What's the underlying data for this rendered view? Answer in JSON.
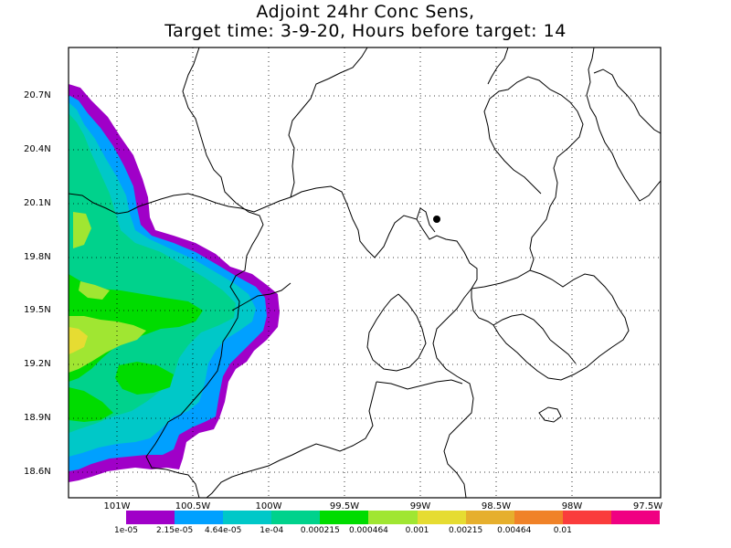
{
  "title": {
    "line1": "Adjoint 24hr Conc Sens,",
    "line2": "Target time: 3-9-20, Hours before target: 14"
  },
  "axes": {
    "lat_labels": [
      "20.7N",
      "20.4N",
      "20.1N",
      "19.8N",
      "19.5N",
      "19.2N",
      "18.9N",
      "18.6N"
    ],
    "lon_labels": [
      "101W",
      "100.5W",
      "100W",
      "99.5W",
      "99W",
      "98.5W",
      "98W",
      "97.5W"
    ],
    "lat_range": [
      18.45,
      20.95
    ],
    "lon_range": [
      -101.0,
      -97.5
    ],
    "grid": "dotted"
  },
  "colorbar": {
    "colors": [
      "#a000c8",
      "#00a0ff",
      "#00c8c8",
      "#00d28c",
      "#00dc00",
      "#a0e632",
      "#e6dc32",
      "#e6af2d",
      "#f08228",
      "#fa3c3c",
      "#f00082"
    ],
    "labels": [
      "1e-05",
      "2.15e-05",
      "4.64e-05",
      "1e-04",
      "0.000215",
      "0.000464",
      "0.001",
      "0.00215",
      "0.00464",
      "0.01"
    ]
  },
  "target_marker": {
    "symbol": "filled-dot",
    "lon": -98.94,
    "lat": 20.1
  }
}
